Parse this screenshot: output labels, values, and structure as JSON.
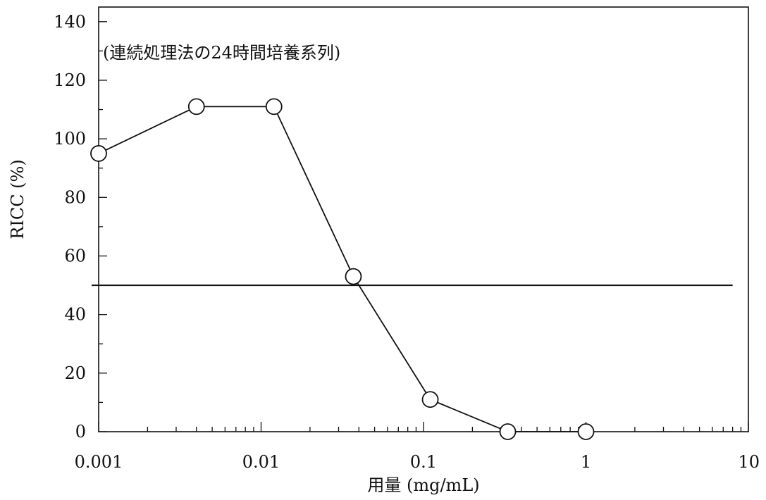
{
  "chart_data": {
    "type": "line",
    "annotation": "(連続処理法の24時間培養系列)",
    "xlabel": "用量 (mg/mL)",
    "ylabel": "RICC (%)",
    "x_scale": "log",
    "xlim": [
      0.001,
      10
    ],
    "ylim": [
      0,
      145
    ],
    "x_ticks": [
      {
        "value": 0.001,
        "label": "0.001"
      },
      {
        "value": 0.01,
        "label": "0.01"
      },
      {
        "value": 0.1,
        "label": "0.1"
      },
      {
        "value": 1,
        "label": "1"
      },
      {
        "value": 10,
        "label": "10"
      }
    ],
    "y_ticks": [
      {
        "value": 0,
        "label": "0"
      },
      {
        "value": 20,
        "label": "20"
      },
      {
        "value": 40,
        "label": "40"
      },
      {
        "value": 60,
        "label": "60"
      },
      {
        "value": 80,
        "label": "80"
      },
      {
        "value": 100,
        "label": "100"
      },
      {
        "value": 120,
        "label": "120"
      },
      {
        "value": 140,
        "label": "140"
      }
    ],
    "reference_line": {
      "y": 50,
      "x_end": 8
    },
    "marker": "open-circle",
    "grid": false,
    "series": [
      {
        "x": [
          0.001,
          0.004,
          0.012,
          0.037,
          0.11,
          0.33,
          1.0
        ],
        "y": [
          95,
          111,
          111,
          53,
          11,
          0,
          0
        ]
      }
    ]
  }
}
